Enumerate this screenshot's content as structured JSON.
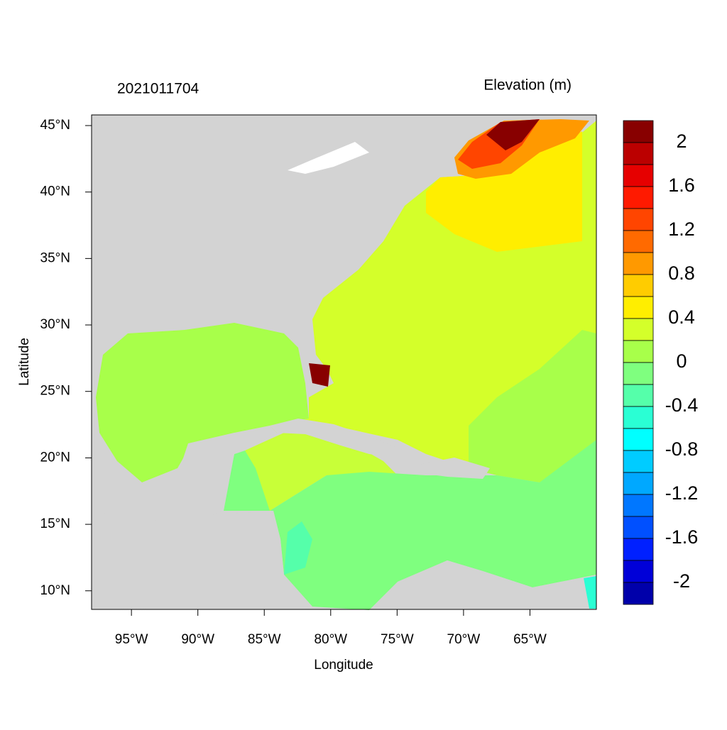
{
  "chart_data": {
    "type": "map",
    "title": "2021011704",
    "legend_title": "Elevation (m)",
    "x_label": "Longitude",
    "y_label": "Latitude",
    "xlim": [
      -98,
      -60
    ],
    "ylim": [
      8.6,
      45.8
    ],
    "xticks": [
      {
        "value": -95,
        "label": "95°W"
      },
      {
        "value": -90,
        "label": "90°W"
      },
      {
        "value": -85,
        "label": "85°W"
      },
      {
        "value": -80,
        "label": "80°W"
      },
      {
        "value": -75,
        "label": "75°W"
      },
      {
        "value": -70,
        "label": "70°W"
      },
      {
        "value": -65,
        "label": "65°W"
      }
    ],
    "yticks": [
      {
        "value": 10,
        "label": "10°N"
      },
      {
        "value": 15,
        "label": "15°N"
      },
      {
        "value": 20,
        "label": "20°N"
      },
      {
        "value": 25,
        "label": "25°N"
      },
      {
        "value": 30,
        "label": "30°N"
      },
      {
        "value": 35,
        "label": "35°N"
      },
      {
        "value": 40,
        "label": "40°N"
      },
      {
        "value": 45,
        "label": "45°N"
      }
    ],
    "colorbar": {
      "lim": [
        -2.2,
        2.2
      ],
      "ticks": [
        2,
        1.6,
        1.2,
        0.8,
        0.4,
        0,
        -0.4,
        -0.8,
        -1.2,
        -1.6,
        -2
      ],
      "colors": [
        "#880000",
        "#bb0000",
        "#e60000",
        "#ff1a00",
        "#ff4500",
        "#ff6a00",
        "#ff9900",
        "#ffcc00",
        "#ffee00",
        "#d4ff2a",
        "#a8ff4a",
        "#7fff7f",
        "#55ffaa",
        "#2affd4",
        "#00ffff",
        "#00ccff",
        "#00a8ff",
        "#0077ff",
        "#0050ff",
        "#0020ff",
        "#0000d8",
        "#0000aa"
      ]
    }
  }
}
